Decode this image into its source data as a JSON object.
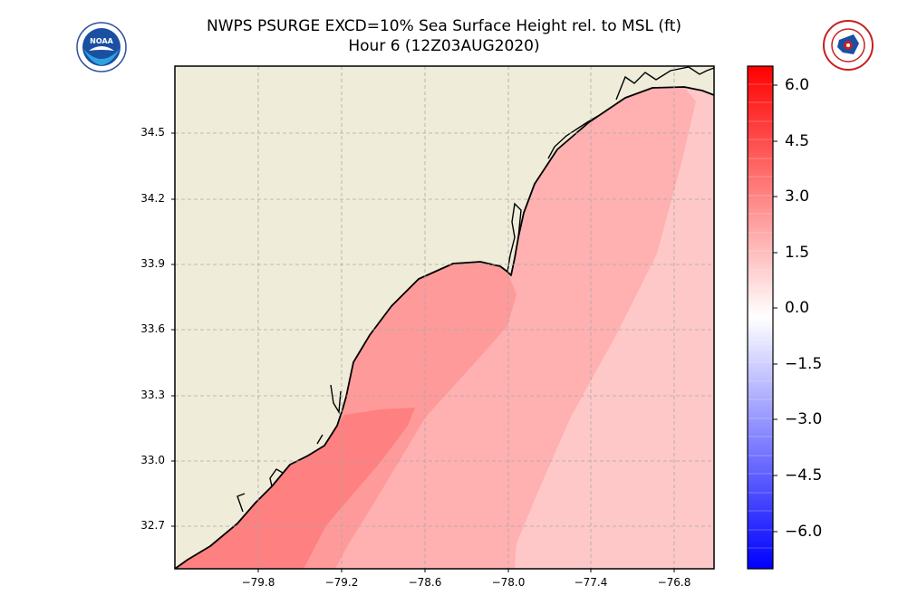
{
  "title": {
    "line1": "NWPS PSURGE EXCD=10% Sea Surface Height rel. to MSL (ft)",
    "line2": "Hour 6 (12Z03AUG2020)"
  },
  "logos": {
    "left": "noaa-logo",
    "right": "nws-logo"
  },
  "map": {
    "latitude_ticks": [
      "34.5",
      "34.2",
      "33.9",
      "33.6",
      "33.3",
      "33.0",
      "32.7"
    ],
    "longitude_ticks": [
      "−79.8",
      "−79.2",
      "−78.6",
      "−78.0",
      "−77.4",
      "−76.8"
    ],
    "gridlines": "dashed",
    "land_color": "#efedd9",
    "coastline_color": "#000000",
    "surge_zones": [
      {
        "level": "highest",
        "color": "#ff8080"
      },
      {
        "level": "high",
        "color": "#ff9a9a"
      },
      {
        "level": "moderate",
        "color": "#ffb0b0"
      },
      {
        "level": "low",
        "color": "#ffc8c8"
      }
    ]
  },
  "colorbar": {
    "ticks": [
      "6.0",
      "4.5",
      "3.0",
      "1.5",
      "0.0",
      "−1.5",
      "−3.0",
      "−4.5",
      "−6.0"
    ],
    "range": [
      -6.75,
      6.75
    ],
    "top_color": "#ff0000",
    "mid_color": "#ffffff",
    "bottom_color": "#0000ff"
  }
}
